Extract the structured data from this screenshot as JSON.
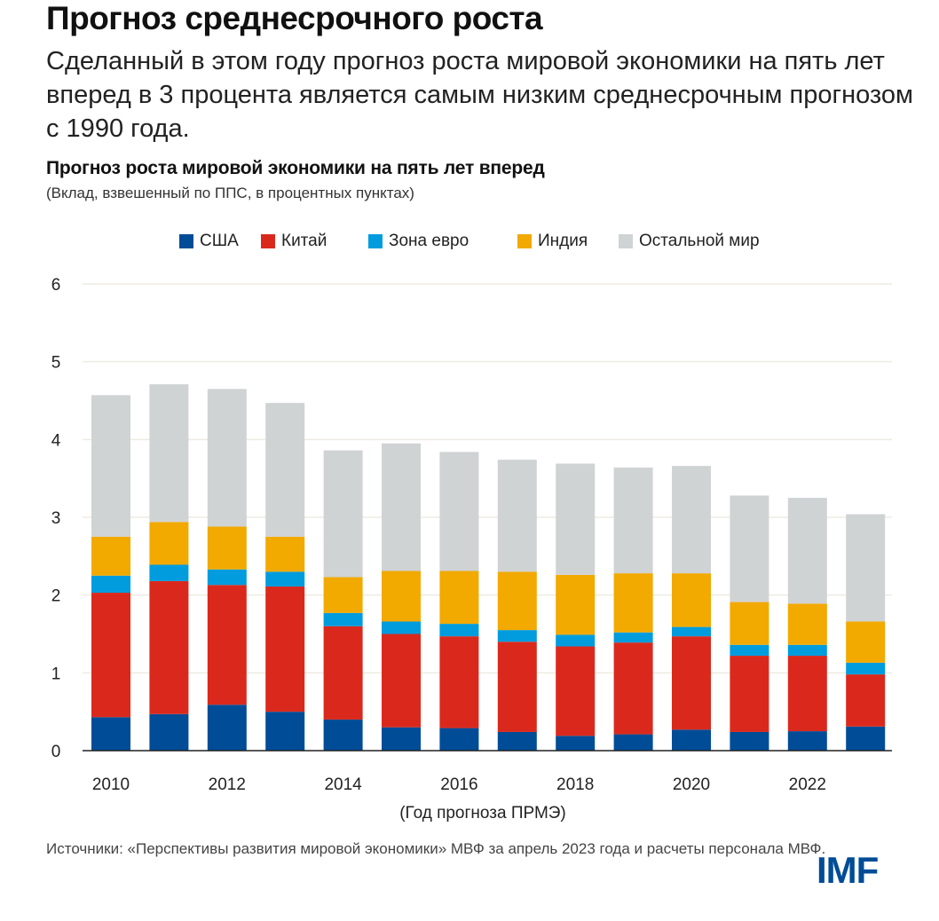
{
  "header": {
    "headline": "Прогноз среднесрочного роста",
    "subhead": "Сделанный в этом году прогноз роста мировой экономики на пять лет вперед в 3 процента является самым низким среднесрочным прогнозом с 1990 года."
  },
  "footer": {
    "source": "Источники: «Перспективы развития мировой экономики» МВФ за апрель 2023 года и расчеты персонала МВФ.",
    "logo": "IMF"
  },
  "colors": {
    "usa": "#004C97",
    "china": "#DA291C",
    "euro": "#009CDE",
    "india": "#F2A900",
    "rest": "#D0D3D4",
    "grid": "#EEEBE0",
    "axis": "#222222"
  },
  "chart_data": {
    "type": "bar",
    "stacked": true,
    "title": "Прогноз роста мировой экономики на пять лет вперед",
    "subtitle": "(Вклад, взвешенный по ППС, в процентных пунктах)",
    "xlabel": "(Год прогноза ПРМЭ)",
    "ylabel": "",
    "ylim": [
      0,
      6
    ],
    "yticks": [
      0,
      1,
      2,
      3,
      4,
      5,
      6
    ],
    "grid": true,
    "legend_position": "top-center",
    "categories": [
      "2010",
      "2011",
      "2012",
      "2013",
      "2014",
      "2015",
      "2016",
      "2017",
      "2018",
      "2019",
      "2020",
      "2021",
      "2022",
      "2023"
    ],
    "xtick_labels": [
      "2010",
      "",
      "2012",
      "",
      "2014",
      "",
      "2016",
      "",
      "2018",
      "",
      "2020",
      "",
      "2022",
      ""
    ],
    "series": [
      {
        "key": "usa",
        "name": "США",
        "values": [
          0.43,
          0.47,
          0.59,
          0.5,
          0.4,
          0.3,
          0.29,
          0.24,
          0.19,
          0.21,
          0.27,
          0.24,
          0.25,
          0.31
        ]
      },
      {
        "key": "china",
        "name": "Китай",
        "values": [
          1.6,
          1.71,
          1.54,
          1.61,
          1.2,
          1.2,
          1.18,
          1.16,
          1.15,
          1.18,
          1.2,
          0.98,
          0.97,
          0.67
        ]
      },
      {
        "key": "euro",
        "name": "Зона евро",
        "values": [
          0.22,
          0.21,
          0.2,
          0.19,
          0.17,
          0.16,
          0.16,
          0.15,
          0.15,
          0.13,
          0.12,
          0.14,
          0.14,
          0.15
        ]
      },
      {
        "key": "india",
        "name": "Индия",
        "values": [
          0.5,
          0.55,
          0.55,
          0.45,
          0.46,
          0.65,
          0.68,
          0.75,
          0.77,
          0.76,
          0.69,
          0.55,
          0.53,
          0.53
        ]
      },
      {
        "key": "rest",
        "name": "Остальной мир",
        "values": [
          1.82,
          1.77,
          1.77,
          1.72,
          1.63,
          1.64,
          1.53,
          1.44,
          1.43,
          1.36,
          1.38,
          1.37,
          1.36,
          1.38
        ]
      }
    ]
  }
}
